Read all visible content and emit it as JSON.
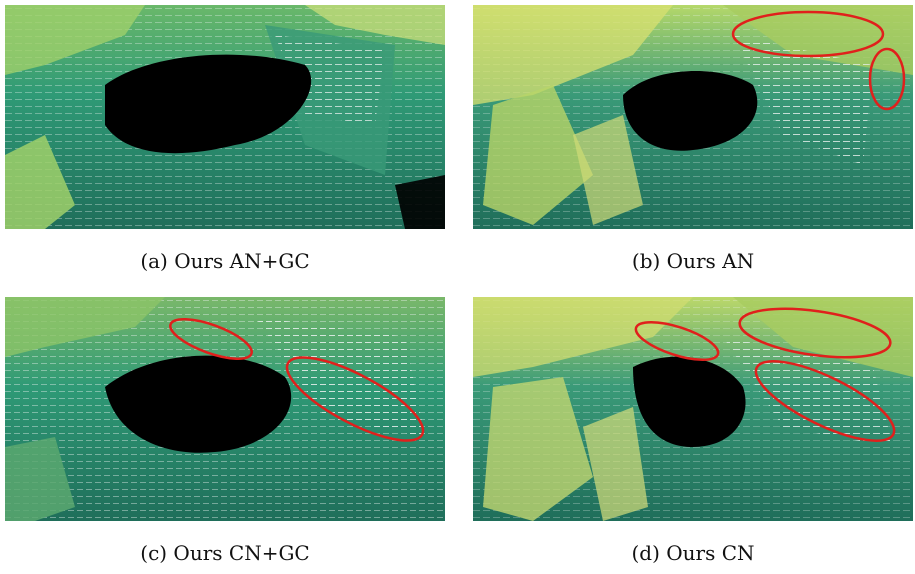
{
  "figure": {
    "panels": [
      {
        "id": "a",
        "caption": "(a) Ours AN+GC",
        "highlights": 0
      },
      {
        "id": "b",
        "caption": "(b) Ours AN",
        "highlights": 2
      },
      {
        "id": "c",
        "caption": "(c) Ours CN+GC",
        "highlights": 2
      },
      {
        "id": "d",
        "caption": "(d) Ours CN",
        "highlights": 3
      }
    ],
    "colors": {
      "mesh_dark": "#1f6e5a",
      "mesh_mid": "#2f9a76",
      "mesh_light": "#9fd06a",
      "mesh_yellow": "#d8e070",
      "points": "#e8f0ee",
      "hole": "#000000",
      "highlight": "#e0201c"
    }
  }
}
